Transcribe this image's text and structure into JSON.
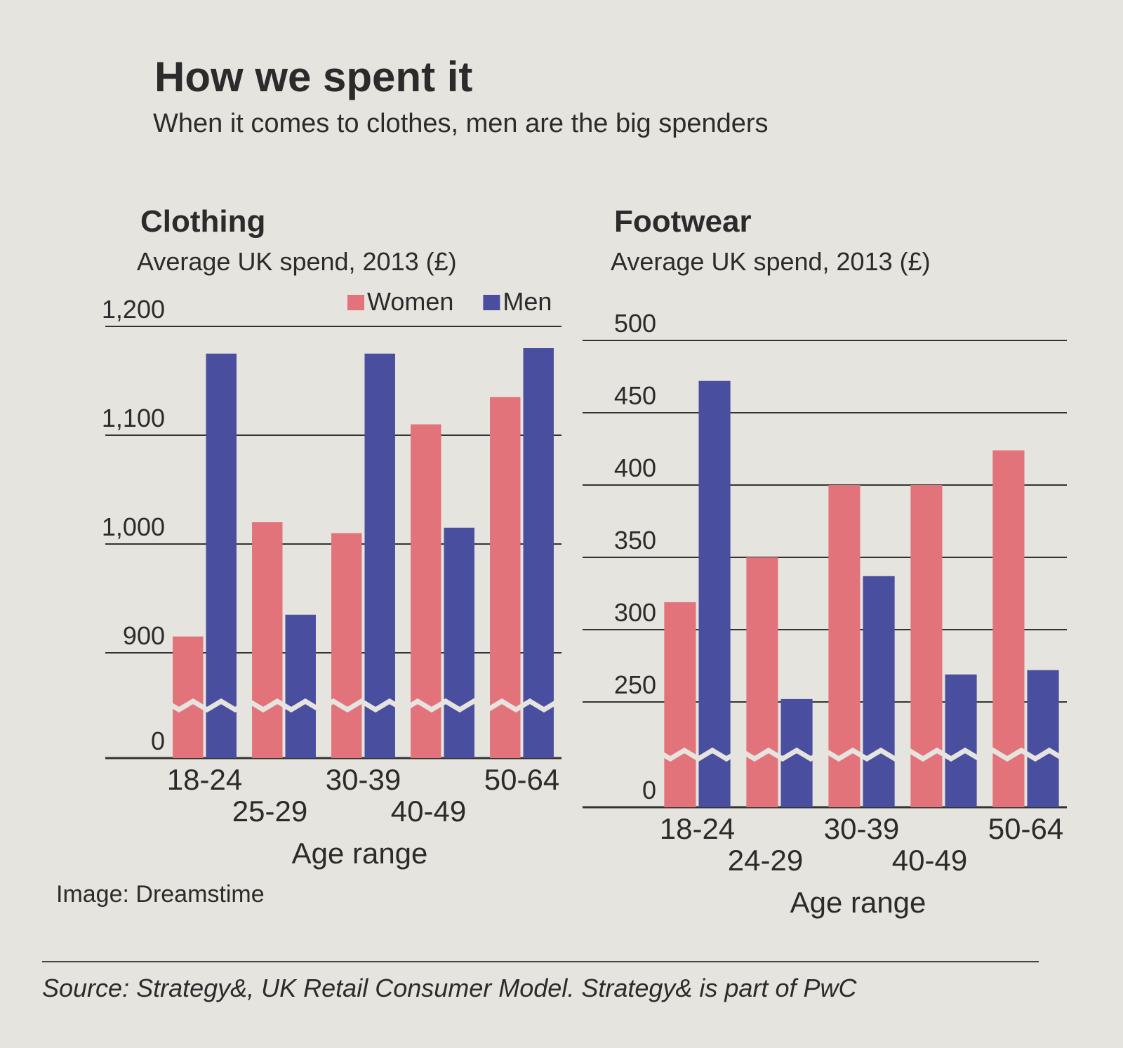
{
  "header": {
    "title": "How we spent it",
    "subtitle": "When it comes to clothes, men are the big spenders"
  },
  "chart_data": [
    {
      "type": "bar",
      "title": "Clothing",
      "subtitle": "Average UK spend, 2013 (£)",
      "x_label": "Age range",
      "categories": [
        "18-24",
        "25-29",
        "30-39",
        "40-49",
        "50-64"
      ],
      "series": [
        {
          "name": "Women",
          "color": "#e2737b",
          "values": [
            915,
            1020,
            1010,
            1110,
            1135
          ]
        },
        {
          "name": "Men",
          "color": "#4a4e9e",
          "values": [
            1175,
            935,
            1175,
            1015,
            1180
          ]
        }
      ],
      "ylim": [
        0,
        1200
      ],
      "broken_axis": true,
      "legend": "top",
      "yticks": [
        0,
        900,
        {
          "value": 1000,
          "label": "1,000"
        },
        {
          "value": 1100,
          "label": "1,100"
        },
        {
          "value": 1200,
          "label": "1,200"
        }
      ]
    },
    {
      "type": "bar",
      "title": "Footwear",
      "subtitle": "Average UK spend, 2013 (£)",
      "x_label": "Age range",
      "categories": [
        "18-24",
        "24-29",
        "30-39",
        "40-49",
        "50-64"
      ],
      "series": [
        {
          "color": "#e2737b",
          "values": [
            319,
            350,
            400,
            400,
            424
          ]
        },
        {
          "color": "#4a4e9e",
          "values": [
            472,
            252,
            337,
            269,
            272
          ]
        }
      ],
      "ylim": [
        0,
        500
      ],
      "broken_axis": true,
      "yticks": [
        0,
        250,
        300,
        350,
        400,
        450,
        500
      ]
    }
  ],
  "footer": {
    "credit": "Image: Dreamstime",
    "source": "Source: Strategy&, UK Retail Consumer Model. Strategy& is part of PwC"
  }
}
